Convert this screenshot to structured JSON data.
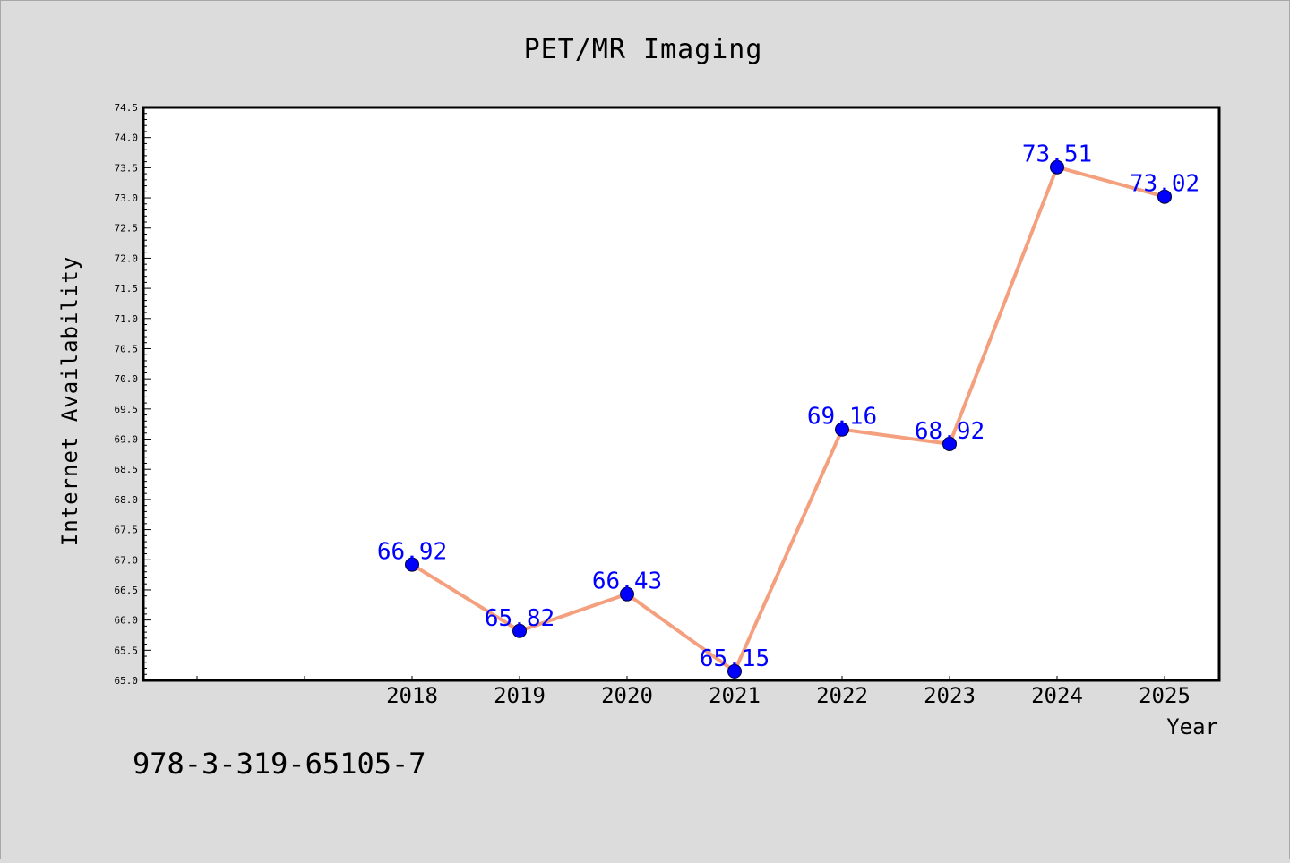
{
  "chart_data": {
    "type": "line",
    "title": "PET/MR Imaging",
    "xlabel": "Year",
    "ylabel": "Internet Availability",
    "x": [
      "2018",
      "2019",
      "2020",
      "2021",
      "2022",
      "2023",
      "2024",
      "2025"
    ],
    "series": [
      {
        "values": [
          66.92,
          65.82,
          66.43,
          65.15,
          69.16,
          68.92,
          73.51,
          73.02
        ],
        "labels": [
          "66.92",
          "65.82",
          "66.43",
          "65.15",
          "69.16",
          "68.92",
          "73.51",
          "73.02"
        ]
      }
    ],
    "ylim": [
      65.0,
      74.5
    ],
    "yticks": [
      "65.0",
      "65.5",
      "66.0",
      "66.5",
      "67.0",
      "67.5",
      "68.0",
      "68.5",
      "69.0",
      "69.5",
      "70.0",
      "70.5",
      "71.0",
      "71.5",
      "72.0",
      "72.5",
      "73.0",
      "73.5",
      "74.0",
      "74.5"
    ],
    "grid": false,
    "line_color": "#f4a07e",
    "marker_color": "#0000ff",
    "label_color": "#0000ff",
    "annotation": "978-3-319-65105-7"
  }
}
